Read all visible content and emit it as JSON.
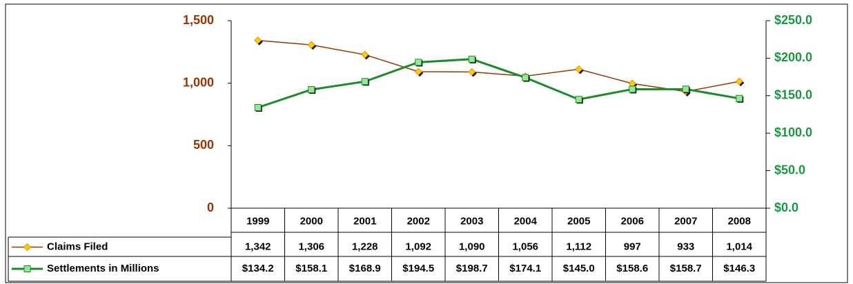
{
  "chart_data": {
    "type": "line",
    "categories": [
      "1999",
      "2000",
      "2001",
      "2002",
      "2003",
      "2004",
      "2005",
      "2006",
      "2007",
      "2008"
    ],
    "series": [
      {
        "name": "Claims Filed",
        "color": "#993300",
        "marker_color": "#ffcc00",
        "values": [
          1342,
          1306,
          1228,
          1092,
          1090,
          1056,
          1112,
          997,
          933,
          1014
        ],
        "value_labels": [
          "1,342",
          "1,306",
          "1,228",
          "1,092",
          "1,090",
          "1,056",
          "1,112",
          "997",
          "933",
          "1,014"
        ]
      },
      {
        "name": "Settlements in Millions",
        "color": "#1a8a2a",
        "marker_color": "#99e699",
        "axis": "y2",
        "values": [
          134.2,
          158.1,
          168.9,
          194.5,
          198.7,
          174.1,
          145.0,
          158.6,
          158.7,
          146.3
        ],
        "value_labels": [
          "$134.2",
          "$158.1",
          "$168.9",
          "$194.5",
          "$198.7",
          "$174.1",
          "$145.0",
          "$158.6",
          "$158.7",
          "$146.3"
        ]
      }
    ],
    "ylim": [
      0,
      1500
    ],
    "yticks": [
      0,
      500,
      {
        "value": 1000,
        "label": "1,000"
      },
      {
        "value": 1500,
        "label": "1,500"
      }
    ],
    "y_tick_color": "#993300",
    "y2lim": [
      0,
      250
    ],
    "y2ticks": [
      {
        "value": 0,
        "label": "$0.0"
      },
      {
        "value": 50,
        "label": "$50.0"
      },
      {
        "value": 100,
        "label": "$100.0"
      },
      {
        "value": 150,
        "label": "$150.0"
      },
      {
        "value": 200,
        "label": "$200.0"
      },
      {
        "value": 250,
        "label": "$250.0"
      }
    ],
    "y2_tick_color": "#1a9641"
  }
}
